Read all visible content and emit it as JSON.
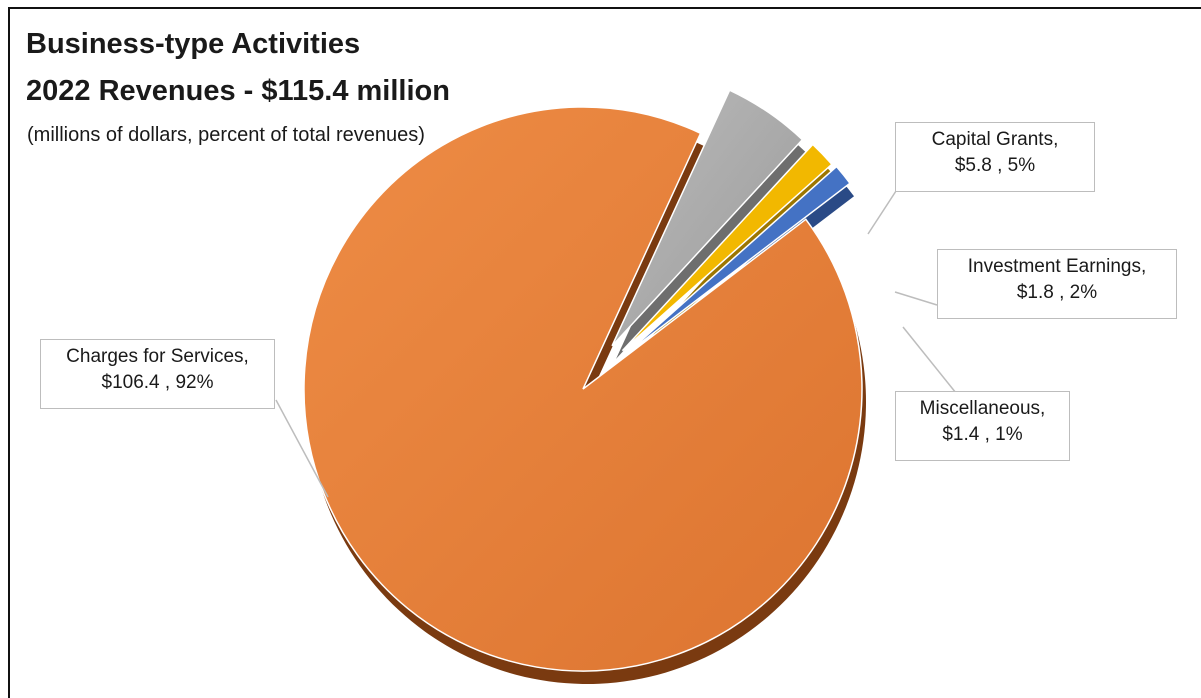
{
  "chart_data": {
    "type": "pie",
    "title": "Business-type Activities",
    "subtitle_main": "2022 Revenues - $115.4 million",
    "subtitle": "(millions of dollars, percent of total revenues)",
    "slices": [
      {
        "name": "Charges for Services",
        "value": 106.4,
        "percent": 92,
        "color": "#E8823A",
        "label_line1": "Charges for Services,",
        "label_line2": "$106.4 , 92%"
      },
      {
        "name": "Capital Grants",
        "value": 5.8,
        "percent": 5,
        "color": "#A5A5A5",
        "label_line1": "Capital Grants,",
        "label_line2": "$5.8 , 5%"
      },
      {
        "name": "Investment Earnings",
        "value": 1.8,
        "percent": 2,
        "color": "#F2B800",
        "label_line1": "Investment Earnings,",
        "label_line2": "$1.8 , 2%"
      },
      {
        "name": "Miscellaneous",
        "value": 1.4,
        "percent": 1,
        "color": "#4472C4",
        "label_line1": "Miscellaneous,",
        "label_line2": "$1.4 , 1%"
      }
    ],
    "legend": "none",
    "style": "3d-exploded"
  }
}
